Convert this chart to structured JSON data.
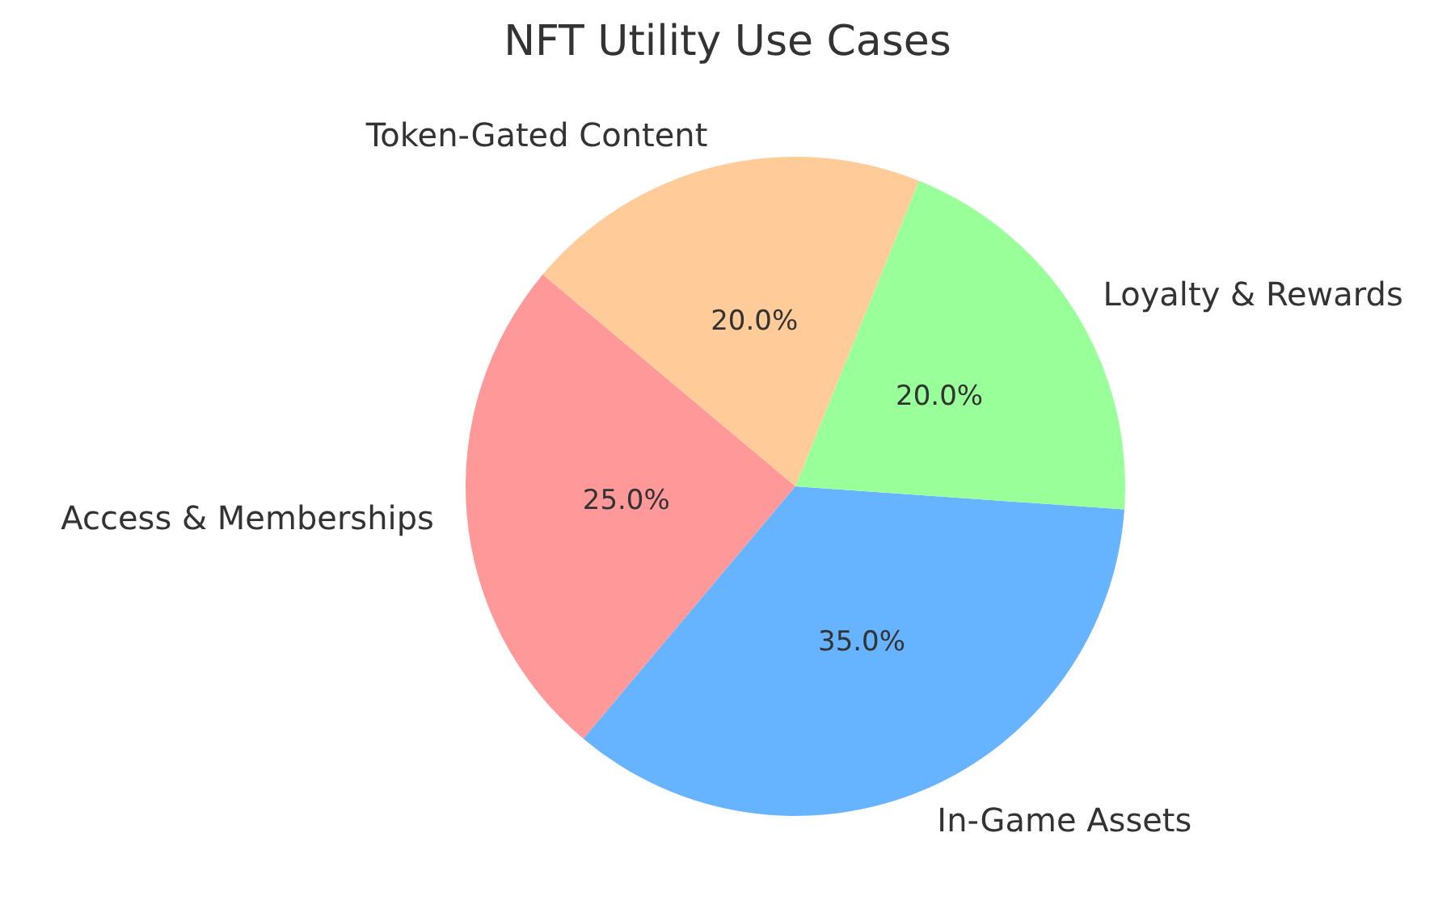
{
  "chart_data": {
    "type": "pie",
    "title": "NFT Utility Use Cases",
    "categories": [
      "Access & Memberships",
      "In-Game Assets",
      "Loyalty & Rewards",
      "Token-Gated Content"
    ],
    "values": [
      25,
      35,
      20,
      20
    ],
    "colors": [
      "#ff9999",
      "#66b3ff",
      "#99ff99",
      "#ffcc99"
    ],
    "value_labels": [
      "25.0%",
      "35.0%",
      "20.0%",
      "20.0%"
    ],
    "legend": false
  }
}
